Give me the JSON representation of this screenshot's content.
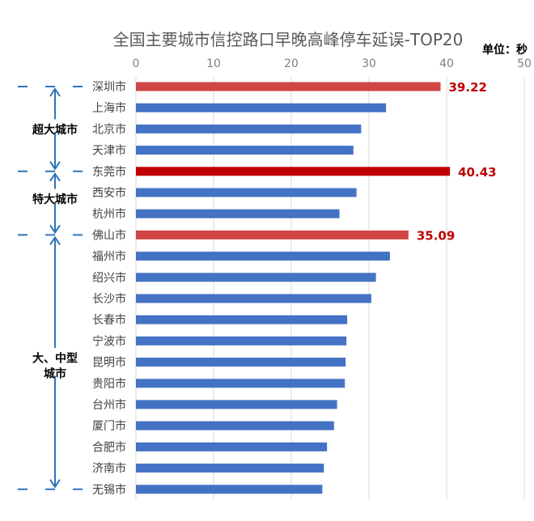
{
  "chart_data": {
    "type": "bar",
    "orientation": "horizontal",
    "title": "全国主要城市信控路口早晚高峰停车延误-TOP20",
    "unit_label": "单位：秒",
    "xlim": [
      0,
      50
    ],
    "xticks": [
      0,
      10,
      20,
      30,
      40,
      50
    ],
    "axis_position": "top",
    "grid": true,
    "categories": [
      "深圳市",
      "上海市",
      "北京市",
      "天津市",
      "东莞市",
      "西安市",
      "杭州市",
      "佛山市",
      "福州市",
      "绍兴市",
      "长沙市",
      "长春市",
      "宁波市",
      "昆明市",
      "贵阳市",
      "台州市",
      "厦门市",
      "合肥市",
      "济南市",
      "无锡市"
    ],
    "values": [
      39.22,
      32.2,
      29.0,
      28.0,
      40.43,
      28.4,
      26.2,
      35.09,
      32.7,
      30.9,
      30.3,
      27.2,
      27.1,
      27.0,
      26.9,
      25.9,
      25.5,
      24.6,
      24.2,
      24.0
    ],
    "data_labels": [
      {
        "category": "深圳市",
        "text": "39.22"
      },
      {
        "category": "东莞市",
        "text": "40.43"
      },
      {
        "category": "佛山市",
        "text": "35.09"
      }
    ],
    "bar_colors": {
      "default": "#4472c4",
      "深圳市": "#d04545",
      "东莞市": "#c00000",
      "佛山市": "#d04545"
    },
    "label_color": "#c00000",
    "groups": [
      {
        "label": "超大城市",
        "start": "深圳市",
        "end": "天津市"
      },
      {
        "label": "特大城市",
        "start": "东莞市",
        "end": "杭州市"
      },
      {
        "label": "大、中型城市",
        "start": "佛山市",
        "end": "无锡市"
      }
    ],
    "group_color": "#2e75b6"
  }
}
